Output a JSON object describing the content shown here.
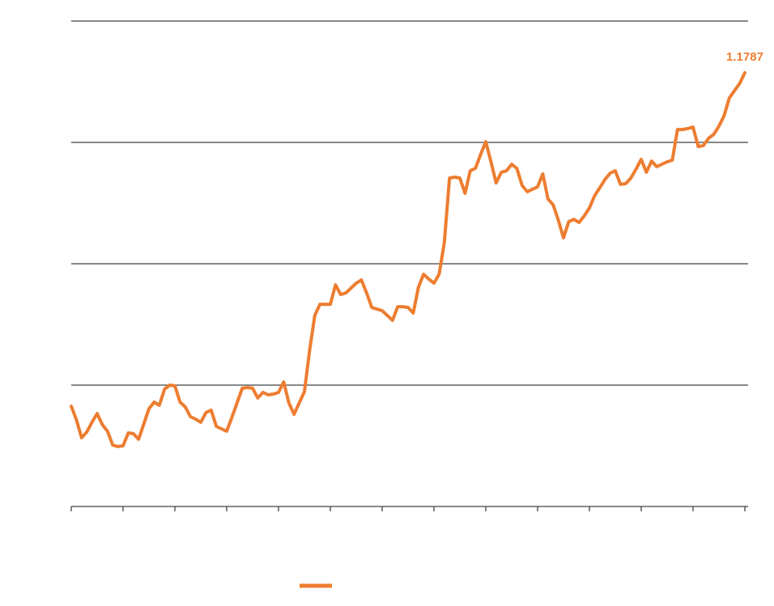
{
  "chart_data": {
    "type": "line",
    "categories": [
      null,
      null,
      null,
      null,
      null,
      null,
      null,
      null,
      null,
      null,
      null,
      null,
      null,
      null,
      null,
      null,
      null,
      null,
      null,
      null,
      null,
      null,
      null,
      null,
      null,
      null,
      null,
      null,
      null,
      null,
      null,
      null,
      null,
      null,
      null,
      null,
      null,
      null,
      null,
      null,
      null,
      null,
      null,
      null,
      null,
      null,
      null,
      null,
      null,
      null,
      null,
      null,
      null,
      null,
      null,
      null,
      null,
      null,
      null,
      null,
      null,
      null,
      null,
      null,
      null,
      null,
      null,
      null,
      null,
      null,
      null,
      null,
      null,
      null,
      null,
      null,
      null,
      null,
      null,
      null,
      null,
      null,
      null,
      null,
      null,
      null,
      null,
      null,
      null,
      null,
      null,
      null,
      null,
      null,
      null,
      null,
      null,
      null,
      null,
      null,
      null,
      null,
      null,
      null,
      null,
      null,
      null,
      null,
      null,
      null,
      null,
      null,
      null,
      null,
      null,
      null,
      null,
      null,
      null,
      null,
      null,
      null,
      null,
      null,
      null,
      null,
      null,
      null,
      null,
      null,
      null
    ],
    "series": [
      {
        "color": "#ed7d31",
        "values": [
          1.0413,
          1.0357,
          1.0283,
          1.0307,
          1.0347,
          1.0383,
          1.0337,
          1.031,
          1.0253,
          1.0247,
          1.025,
          1.0303,
          1.03,
          1.0277,
          1.034,
          1.0403,
          1.043,
          1.0417,
          1.0483,
          1.05,
          1.0497,
          1.043,
          1.041,
          1.037,
          1.036,
          1.0347,
          1.0387,
          1.0397,
          1.033,
          1.032,
          1.031,
          1.0367,
          1.0427,
          1.0487,
          1.049,
          1.0487,
          1.0447,
          1.047,
          1.046,
          1.0463,
          1.047,
          1.0513,
          1.0427,
          1.038,
          1.0427,
          1.0473,
          1.0643,
          1.0787,
          1.0833,
          1.0833,
          1.0833,
          1.0913,
          1.0873,
          1.088,
          1.09,
          1.092,
          1.0933,
          1.088,
          1.082,
          1.0813,
          1.0807,
          1.0787,
          1.0767,
          1.0823,
          1.0823,
          1.082,
          1.0797,
          1.0903,
          1.0957,
          1.0937,
          1.092,
          1.0957,
          1.1087,
          1.1353,
          1.1357,
          1.1353,
          1.129,
          1.1383,
          1.1393,
          1.145,
          1.1503,
          1.142,
          1.1333,
          1.1377,
          1.1383,
          1.141,
          1.1393,
          1.1323,
          1.1297,
          1.1307,
          1.1317,
          1.137,
          1.1267,
          1.1243,
          1.118,
          1.1107,
          1.1173,
          1.1183,
          1.117,
          1.1197,
          1.123,
          1.128,
          1.1313,
          1.1347,
          1.1373,
          1.1383,
          1.1327,
          1.133,
          1.1353,
          1.139,
          1.143,
          1.1377,
          1.1423,
          1.14,
          1.141,
          1.142,
          1.1427,
          1.1553,
          1.1553,
          1.1557,
          1.1563,
          1.1483,
          1.1487,
          1.1517,
          1.1533,
          1.1567,
          1.161,
          1.1683,
          1.1713,
          1.1743,
          1.1787
        ]
      }
    ],
    "ylim": [
      1.0,
      1.2
    ],
    "yticks": [
      1.0,
      1.05,
      1.1,
      1.15,
      1.2
    ],
    "grid": true
  }
}
